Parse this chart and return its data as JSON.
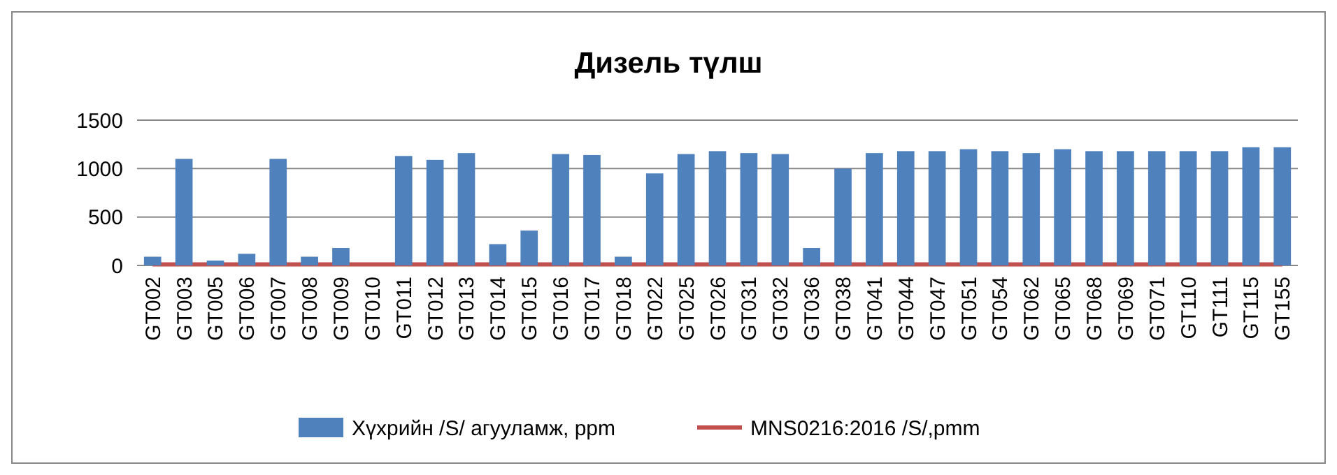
{
  "chart_data": {
    "type": "bar",
    "title": "Дизель түлш",
    "categories": [
      "GT002",
      "GT003",
      "GT005",
      "GT006",
      "GT007",
      "GT008",
      "GT009",
      "GT010",
      "GT011",
      "GT012",
      "GT013",
      "GT014",
      "GT015",
      "GT016",
      "GT017",
      "GT018",
      "GT022",
      "GT025",
      "GT026",
      "GT031",
      "GT032",
      "GT036",
      "GT038",
      "GT041",
      "GT044",
      "GT047",
      "GT051",
      "GT054",
      "GT062",
      "GT065",
      "GT068",
      "GT069",
      "GT071",
      "GT110",
      "GT111",
      "GT115",
      "GT155"
    ],
    "series": [
      {
        "name": "Хүхрийн /S/ агууламж, ppm",
        "color": "#4f81bd",
        "values": [
          90,
          1100,
          50,
          120,
          1100,
          90,
          180,
          null,
          1130,
          1090,
          1160,
          220,
          360,
          1150,
          1140,
          90,
          950,
          1150,
          1180,
          1160,
          1150,
          180,
          1000,
          1160,
          1180,
          1180,
          1200,
          1180,
          1160,
          1200,
          1180,
          1180,
          1180,
          1180,
          1180,
          1220,
          1220
        ]
      },
      {
        "name": "MNS0216:2016 /S/,pmm",
        "type": "line",
        "color": "#c0504d",
        "values": [
          10,
          10,
          10,
          10,
          10,
          10,
          10,
          10,
          10,
          10,
          10,
          10,
          10,
          10,
          10,
          10,
          10,
          10,
          10,
          10,
          10,
          10,
          10,
          10,
          10,
          10,
          10,
          10,
          10,
          10,
          10,
          10,
          10,
          10,
          10,
          10,
          10
        ]
      }
    ],
    "ylim": [
      0,
      1500
    ],
    "yticks": [
      0,
      500,
      1000,
      1500
    ],
    "grid": "y",
    "legend": "bottom",
    "marker": "none"
  }
}
